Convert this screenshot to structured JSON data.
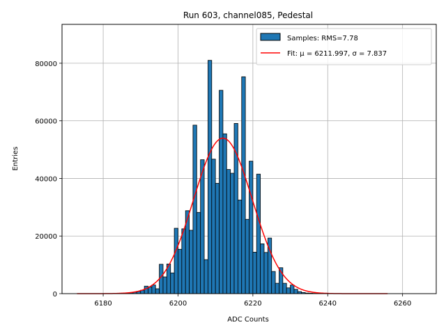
{
  "chart_data": {
    "type": "bar",
    "title": "Run 603, channel085, Pedestal",
    "xlabel": "ADC Counts",
    "ylabel": "Entries",
    "xlim": [
      6169,
      6269
    ],
    "ylim": [
      0,
      93500
    ],
    "xticks": [
      6180,
      6200,
      6220,
      6240,
      6260
    ],
    "yticks": [
      0,
      20000,
      40000,
      60000,
      80000
    ],
    "grid": true,
    "legend_position": "top-right",
    "legend": {
      "hist_label": "Samples: RMS=7.78",
      "fit_label": "Fit: μ = 6211.997, σ = 7.837"
    },
    "colors": {
      "bars": "#1f77b4",
      "bar_edge": "#000000",
      "fit": "#ff0000",
      "grid": "#b0b0b0"
    },
    "bin_width": 1,
    "series": [
      {
        "name": "Samples: RMS=7.78",
        "type": "histogram",
        "bin_starts": [
          6185,
          6186,
          6187,
          6188,
          6189,
          6190,
          6191,
          6192,
          6193,
          6194,
          6195,
          6196,
          6197,
          6198,
          6199,
          6200,
          6201,
          6202,
          6203,
          6204,
          6205,
          6206,
          6207,
          6208,
          6209,
          6210,
          6211,
          6212,
          6213,
          6214,
          6215,
          6216,
          6217,
          6218,
          6219,
          6220,
          6221,
          6222,
          6223,
          6224,
          6225,
          6226,
          6227,
          6228,
          6229,
          6230,
          6231,
          6232,
          6233,
          6234,
          6235,
          6236,
          6237
        ],
        "values": [
          100,
          150,
          300,
          500,
          800,
          1200,
          2600,
          2300,
          3000,
          1700,
          10200,
          5800,
          10300,
          7200,
          22700,
          15400,
          22500,
          28800,
          22000,
          58500,
          28200,
          46500,
          11800,
          81000,
          46700,
          38300,
          70600,
          55500,
          43100,
          41800,
          59100,
          32500,
          75300,
          25800,
          46000,
          14400,
          41500,
          17300,
          14300,
          19300,
          7700,
          3600,
          9000,
          3600,
          2000,
          3000,
          1500,
          700,
          400,
          200,
          150,
          100,
          50
        ]
      },
      {
        "name": "Fit: μ = 6211.997, σ = 7.837",
        "type": "line",
        "fit": "gaussian",
        "mu": 6211.997,
        "sigma": 7.837,
        "amplitude": 54000,
        "x_range": [
          6173,
          6256
        ]
      }
    ]
  }
}
